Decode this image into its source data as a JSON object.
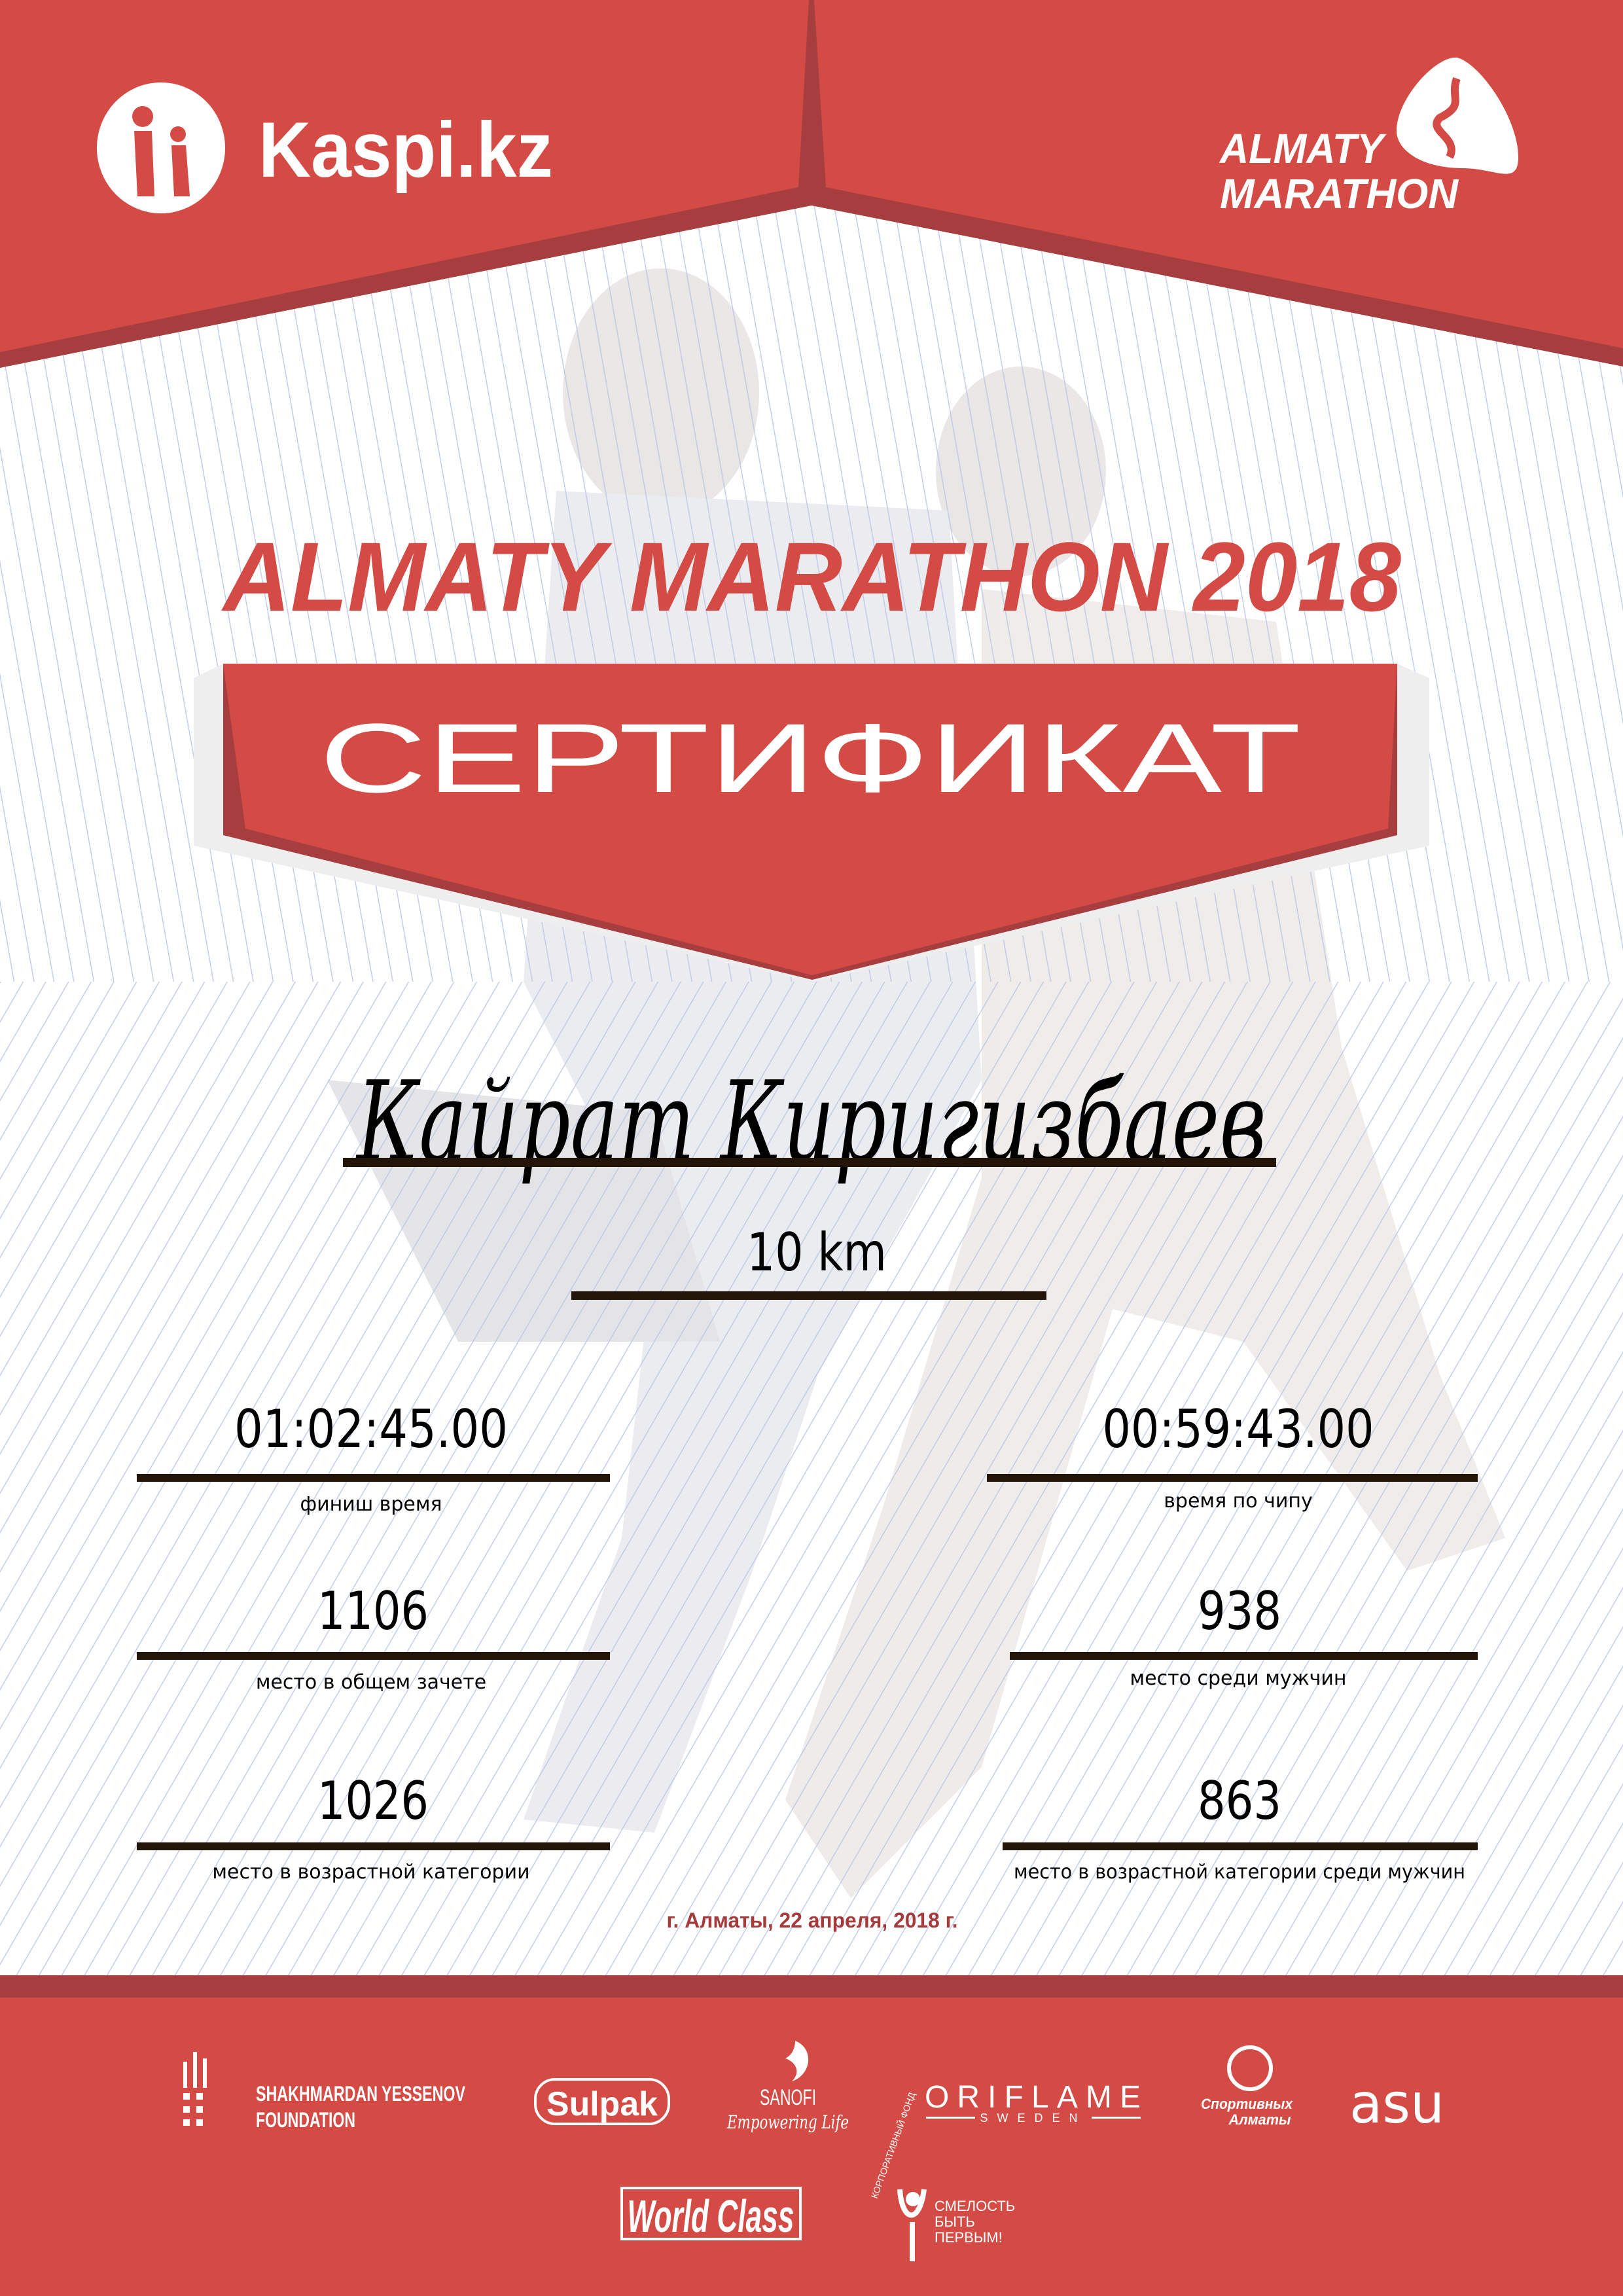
{
  "colors": {
    "brand_red": "#d34b44",
    "dark_red": "#a63e3f",
    "rule": "#231507",
    "date_red": "#a53a3b",
    "stripe": "#b9c5e6"
  },
  "header": {
    "kaspi_logo": "Kaspi.kz",
    "marathon_logo": {
      "line1": "ALMATY",
      "line2": "MARATHON"
    }
  },
  "title": "ALMATY MARATHON 2018",
  "banner": "СЕРТИФИКАТ",
  "participant": {
    "name": "Кайрат Киригизбаев",
    "distance": "10 km"
  },
  "results": {
    "finish_time": {
      "value": "01:02:45.00",
      "label": "финиш время"
    },
    "chip_time": {
      "value": "00:59:43.00",
      "label": "время по чипу"
    },
    "overall_place": {
      "value": "1106",
      "label": "место в общем зачете"
    },
    "gender_place": {
      "value": "938",
      "label": "место среди мужчин"
    },
    "age_place": {
      "value": "1026",
      "label": "место в возрастной категории"
    },
    "age_gender_place": {
      "value": "863",
      "label": "место в возрастной категории среди мужчин"
    }
  },
  "date": "г. Алматы, 22 апреля, 2018 г.",
  "sponsors": {
    "yessenov": {
      "line1": "SHAKHMARDAN YESSENOV",
      "line2": "FOUNDATION"
    },
    "sulpak": "Sulpak",
    "sanofi": {
      "name": "SANOFI",
      "tagline": "Empowering Life"
    },
    "oriflame": {
      "name": "ORIFLAME",
      "sub": "SWEDEN"
    },
    "sport_almaty": {
      "line1": "Спортивных",
      "line2": "Алматы"
    },
    "asu": "asu",
    "worldclass": "World Class",
    "smelost": {
      "line1": "СМЕЛОСТЬ",
      "line2": "БЫТЬ",
      "line3": "ПЕРВЫМ!",
      "arc": "КОРПОРАТИВНЫЙ ФОНД"
    }
  }
}
